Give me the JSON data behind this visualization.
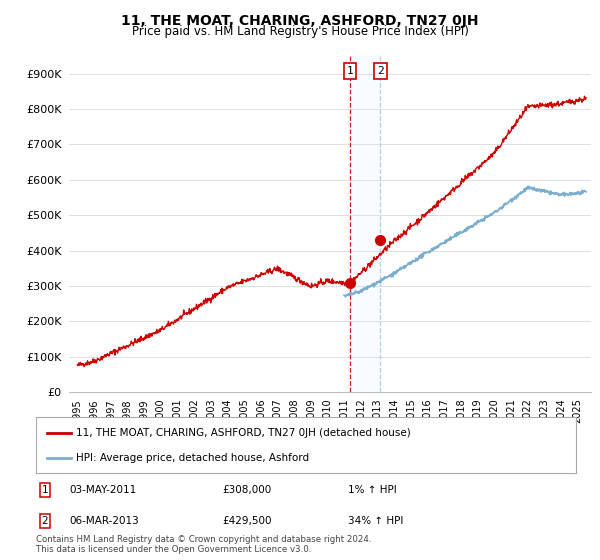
{
  "title": "11, THE MOAT, CHARING, ASHFORD, TN27 0JH",
  "subtitle": "Price paid vs. HM Land Registry's House Price Index (HPI)",
  "ylabel_ticks": [
    "£0",
    "£100K",
    "£200K",
    "£300K",
    "£400K",
    "£500K",
    "£600K",
    "£700K",
    "£800K",
    "£900K"
  ],
  "ytick_values": [
    0,
    100000,
    200000,
    300000,
    400000,
    500000,
    600000,
    700000,
    800000,
    900000
  ],
  "ylim": [
    0,
    950000
  ],
  "xlim_start": 1994.5,
  "xlim_end": 2025.8,
  "transaction1": {
    "date_num": 2011.34,
    "price": 308000,
    "label": "1",
    "display": "03-MAY-2011",
    "amount": "£308,000",
    "hpi_change": "1% ↑ HPI"
  },
  "transaction2": {
    "date_num": 2013.17,
    "price": 429500,
    "label": "2",
    "display": "06-MAR-2013",
    "amount": "£429,500",
    "hpi_change": "34% ↑ HPI"
  },
  "legend_line1": "11, THE MOAT, CHARING, ASHFORD, TN27 0JH (detached house)",
  "legend_line2": "HPI: Average price, detached house, Ashford",
  "footnote": "Contains HM Land Registry data © Crown copyright and database right 2024.\nThis data is licensed under the Open Government Licence v3.0.",
  "line_color_red": "#cc0000",
  "line_color_blue": "#7aadcf",
  "vline_color1": "#cc0000",
  "vline_color2": "#aaccee",
  "bg_color": "#ffffff",
  "grid_color": "#e0e0e0",
  "box_highlight_color": "#ddeeff",
  "title_fontsize": 10,
  "subtitle_fontsize": 8.5
}
